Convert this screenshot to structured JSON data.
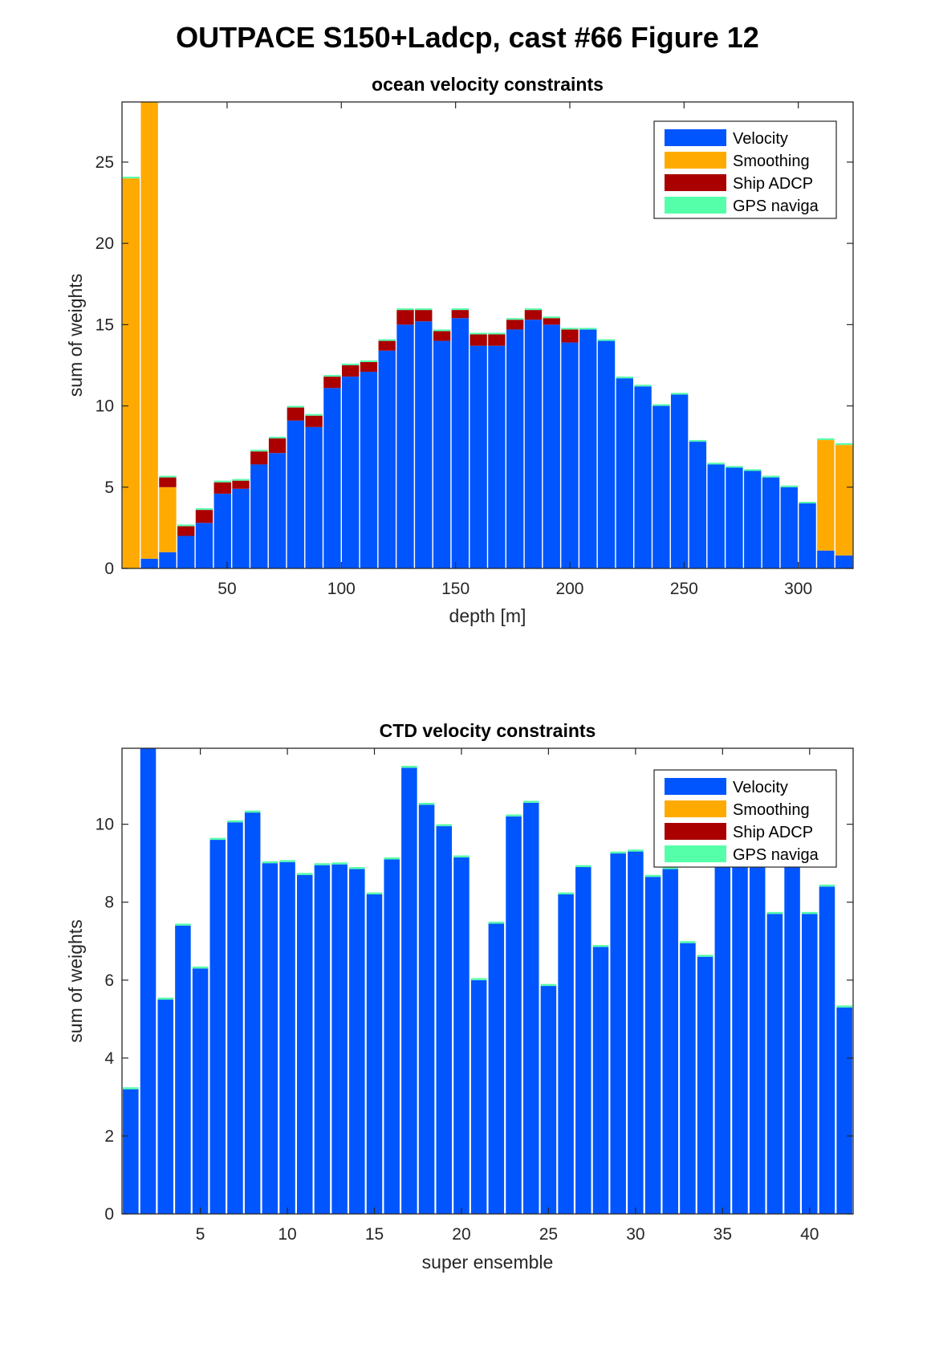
{
  "figure_title": "OUTPACE S150+Ladcp, cast #66  Figure 12",
  "colors": {
    "Velocity": "#0055ff",
    "Smoothing": "#ffaa00",
    "Ship ADCP": "#aa0000",
    "GPS naviga": "#55ffaa"
  },
  "chart_data": [
    {
      "type": "bar",
      "stacked": true,
      "title": "ocean velocity constraints",
      "xlabel": "depth [m]",
      "ylabel": "sum of weights",
      "xlim": [
        4,
        324
      ],
      "ylim": [
        0,
        28.7
      ],
      "xticks": [
        50,
        100,
        150,
        200,
        250,
        300
      ],
      "yticks": [
        0,
        5,
        10,
        15,
        20,
        25
      ],
      "bar_width": 7.5,
      "legend": {
        "position": "top-right",
        "entries": [
          "Velocity",
          "Smoothing",
          "Ship ADCP",
          "GPS naviga"
        ]
      },
      "x": [
        8,
        16,
        24,
        32,
        40,
        48,
        56,
        64,
        72,
        80,
        88,
        96,
        104,
        112,
        120,
        128,
        136,
        144,
        152,
        160,
        168,
        176,
        184,
        192,
        200,
        208,
        216,
        224,
        232,
        240,
        248,
        256,
        264,
        272,
        280,
        288,
        296,
        304,
        312,
        320
      ],
      "series": [
        {
          "name": "Velocity",
          "values": [
            0,
            0.6,
            1.0,
            2.0,
            2.8,
            4.6,
            4.9,
            6.4,
            7.1,
            9.1,
            8.7,
            11.1,
            11.8,
            12.1,
            13.4,
            15.0,
            15.2,
            14.0,
            15.4,
            13.7,
            13.7,
            14.7,
            15.3,
            15.0,
            13.9,
            14.7,
            14.0,
            11.7,
            11.2,
            10.0,
            10.7,
            7.8,
            6.4,
            6.2,
            6.0,
            5.6,
            5.0,
            4.0,
            1.1,
            0.8
          ]
        },
        {
          "name": "Smoothing",
          "values": [
            24.0,
            28.1,
            4.0,
            0,
            0,
            0,
            0,
            0,
            0,
            0,
            0,
            0,
            0,
            0,
            0,
            0,
            0,
            0,
            0,
            0,
            0,
            0,
            0,
            0,
            0,
            0,
            0,
            0,
            0,
            0,
            0,
            0,
            0,
            0,
            0,
            0,
            0,
            0,
            6.8,
            6.8
          ]
        },
        {
          "name": "Ship ADCP",
          "values": [
            0,
            0,
            0.6,
            0.6,
            0.8,
            0.7,
            0.5,
            0.8,
            0.9,
            0.8,
            0.7,
            0.7,
            0.7,
            0.6,
            0.6,
            0.9,
            0.7,
            0.6,
            0.5,
            0.7,
            0.7,
            0.6,
            0.6,
            0.4,
            0.8,
            0,
            0,
            0,
            0,
            0,
            0,
            0,
            0,
            0,
            0,
            0,
            0,
            0,
            0,
            0
          ]
        },
        {
          "name": "GPS naviga",
          "values": [
            0.1,
            0.1,
            0.1,
            0.1,
            0.1,
            0.1,
            0.1,
            0.1,
            0.1,
            0.1,
            0.1,
            0.1,
            0.1,
            0.1,
            0.1,
            0.1,
            0.1,
            0.1,
            0.1,
            0.1,
            0.1,
            0.1,
            0.1,
            0.1,
            0.1,
            0.1,
            0.1,
            0.1,
            0.1,
            0.1,
            0.1,
            0.1,
            0.1,
            0.1,
            0.1,
            0.1,
            0.1,
            0.1,
            0.1,
            0.1
          ]
        }
      ]
    },
    {
      "type": "bar",
      "stacked": true,
      "title": "CTD velocity constraints",
      "xlabel": "super ensemble",
      "ylabel": "sum of weights",
      "xlim": [
        0.5,
        42.5
      ],
      "ylim": [
        0,
        11.95
      ],
      "xticks": [
        5,
        10,
        15,
        20,
        25,
        30,
        35,
        40
      ],
      "yticks": [
        0,
        2,
        4,
        6,
        8,
        10
      ],
      "bar_width": 0.9,
      "legend": {
        "position": "top-right",
        "entries": [
          "Velocity",
          "Smoothing",
          "Ship ADCP",
          "GPS naviga"
        ]
      },
      "x": [
        1,
        2,
        3,
        4,
        5,
        6,
        7,
        8,
        9,
        10,
        11,
        12,
        13,
        14,
        15,
        16,
        17,
        18,
        19,
        20,
        21,
        22,
        23,
        24,
        25,
        26,
        27,
        28,
        29,
        30,
        31,
        32,
        33,
        34,
        35,
        36,
        37,
        38,
        39,
        40,
        41,
        42
      ],
      "series": [
        {
          "name": "Velocity",
          "values": [
            3.2,
            12.0,
            5.5,
            7.4,
            6.3,
            9.6,
            10.05,
            10.3,
            9.0,
            9.03,
            8.7,
            8.95,
            8.97,
            8.85,
            8.2,
            9.1,
            11.45,
            10.5,
            9.95,
            9.15,
            6.0,
            7.45,
            10.2,
            10.55,
            5.85,
            8.2,
            8.9,
            6.85,
            9.25,
            9.3,
            8.65,
            8.85,
            6.95,
            6.6,
            9.0,
            9.0,
            9.0,
            7.7,
            9.0,
            7.7,
            8.4,
            5.3
          ]
        },
        {
          "name": "Smoothing",
          "values": [
            0,
            0,
            0,
            0,
            0,
            0,
            0,
            0,
            0,
            0,
            0,
            0,
            0,
            0,
            0,
            0,
            0,
            0,
            0,
            0,
            0,
            0,
            0,
            0,
            0,
            0,
            0,
            0,
            0,
            0,
            0,
            0,
            0,
            0,
            0,
            0,
            0,
            0,
            0,
            0,
            0,
            0
          ]
        },
        {
          "name": "Ship ADCP",
          "values": [
            0,
            0,
            0,
            0,
            0,
            0,
            0,
            0,
            0,
            0,
            0,
            0,
            0,
            0,
            0,
            0,
            0,
            0,
            0,
            0,
            0,
            0,
            0,
            0,
            0,
            0,
            0,
            0,
            0,
            0,
            0,
            0,
            0,
            0,
            0,
            0,
            0,
            0,
            0,
            0,
            0,
            0
          ]
        },
        {
          "name": "GPS naviga",
          "values": [
            0.05,
            0.05,
            0.05,
            0.05,
            0.05,
            0.05,
            0.05,
            0.05,
            0.05,
            0.05,
            0.05,
            0.05,
            0.05,
            0.05,
            0.05,
            0.05,
            0.05,
            0.05,
            0.05,
            0.05,
            0.05,
            0.05,
            0.05,
            0.05,
            0.05,
            0.05,
            0.05,
            0.05,
            0.05,
            0.05,
            0.05,
            0.05,
            0.05,
            0.05,
            0.05,
            0.05,
            0.05,
            0.05,
            0.05,
            0.05,
            0.05,
            0.05
          ]
        }
      ]
    }
  ]
}
